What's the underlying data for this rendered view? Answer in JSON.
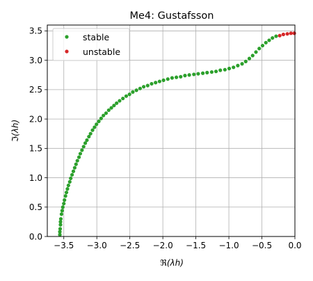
{
  "chart_data": {
    "type": "scatter",
    "title": "Me4: Gustafsson",
    "xlabel": "ℜ(λh)",
    "ylabel": "ℑ(λh)",
    "xlim": [
      -3.75,
      0.0
    ],
    "ylim": [
      0.0,
      3.6
    ],
    "x_ticks": [
      -3.5,
      -3.0,
      -2.5,
      -2.0,
      -1.5,
      -1.0,
      -0.5,
      0.0
    ],
    "x_tick_labels": [
      "−3.5",
      "−3.0",
      "−2.5",
      "−2.0",
      "−1.5",
      "−1.0",
      "−0.5",
      "0.0"
    ],
    "y_ticks": [
      0.0,
      0.5,
      1.0,
      1.5,
      2.0,
      2.5,
      3.0,
      3.5
    ],
    "y_tick_labels": [
      "0.0",
      "0.5",
      "1.0",
      "1.5",
      "2.0",
      "2.5",
      "3.0",
      "3.5"
    ],
    "grid": true,
    "legend_position": "top-left",
    "series": [
      {
        "name": "stable",
        "color": "#2ca02c",
        "points": [
          [
            -3.56,
            0.03
          ],
          [
            -3.56,
            0.08
          ],
          [
            -3.555,
            0.13
          ],
          [
            -3.55,
            0.2
          ],
          [
            -3.55,
            0.25
          ],
          [
            -3.545,
            0.3
          ],
          [
            -3.535,
            0.38
          ],
          [
            -3.525,
            0.44
          ],
          [
            -3.515,
            0.5
          ],
          [
            -3.5,
            0.56
          ],
          [
            -3.49,
            0.62
          ],
          [
            -3.475,
            0.69
          ],
          [
            -3.46,
            0.75
          ],
          [
            -3.445,
            0.81
          ],
          [
            -3.43,
            0.87
          ],
          [
            -3.41,
            0.93
          ],
          [
            -3.395,
            0.99
          ],
          [
            -3.375,
            1.05
          ],
          [
            -3.355,
            1.11
          ],
          [
            -3.335,
            1.17
          ],
          [
            -3.315,
            1.23
          ],
          [
            -3.295,
            1.29
          ],
          [
            -3.27,
            1.35
          ],
          [
            -3.25,
            1.41
          ],
          [
            -3.225,
            1.47
          ],
          [
            -3.2,
            1.53
          ],
          [
            -3.175,
            1.59
          ],
          [
            -3.15,
            1.64
          ],
          [
            -3.12,
            1.7
          ],
          [
            -3.095,
            1.75
          ],
          [
            -3.065,
            1.81
          ],
          [
            -3.035,
            1.86
          ],
          [
            -3.005,
            1.91
          ],
          [
            -2.97,
            1.96
          ],
          [
            -2.935,
            2.01
          ],
          [
            -2.9,
            2.06
          ],
          [
            -2.86,
            2.1
          ],
          [
            -2.82,
            2.15
          ],
          [
            -2.78,
            2.19
          ],
          [
            -2.74,
            2.23
          ],
          [
            -2.7,
            2.27
          ],
          [
            -2.655,
            2.31
          ],
          [
            -2.605,
            2.35
          ],
          [
            -2.555,
            2.39
          ],
          [
            -2.505,
            2.42
          ],
          [
            -2.455,
            2.46
          ],
          [
            -2.4,
            2.49
          ],
          [
            -2.345,
            2.52
          ],
          [
            -2.29,
            2.55
          ],
          [
            -2.23,
            2.57
          ],
          [
            -2.17,
            2.6
          ],
          [
            -2.11,
            2.62
          ],
          [
            -2.05,
            2.64
          ],
          [
            -1.99,
            2.66
          ],
          [
            -1.925,
            2.68
          ],
          [
            -1.86,
            2.7
          ],
          [
            -1.795,
            2.71
          ],
          [
            -1.73,
            2.72
          ],
          [
            -1.665,
            2.74
          ],
          [
            -1.6,
            2.75
          ],
          [
            -1.53,
            2.76
          ],
          [
            -1.465,
            2.77
          ],
          [
            -1.395,
            2.78
          ],
          [
            -1.33,
            2.79
          ],
          [
            -1.26,
            2.8
          ],
          [
            -1.195,
            2.81
          ],
          [
            -1.13,
            2.83
          ],
          [
            -1.06,
            2.84
          ],
          [
            -0.995,
            2.86
          ],
          [
            -0.93,
            2.88
          ],
          [
            -0.865,
            2.91
          ],
          [
            -0.8,
            2.94
          ],
          [
            -0.745,
            2.98
          ],
          [
            -0.69,
            3.03
          ],
          [
            -0.64,
            3.08
          ],
          [
            -0.59,
            3.14
          ],
          [
            -0.54,
            3.2
          ],
          [
            -0.49,
            3.25
          ],
          [
            -0.44,
            3.3
          ],
          [
            -0.39,
            3.34
          ],
          [
            -0.34,
            3.38
          ],
          [
            -0.285,
            3.41
          ]
        ]
      },
      {
        "name": "unstable",
        "color": "#d62728",
        "points": [
          [
            -0.23,
            3.42
          ],
          [
            -0.175,
            3.44
          ],
          [
            -0.115,
            3.45
          ],
          [
            -0.06,
            3.46
          ],
          [
            -0.01,
            3.46
          ]
        ]
      }
    ]
  }
}
